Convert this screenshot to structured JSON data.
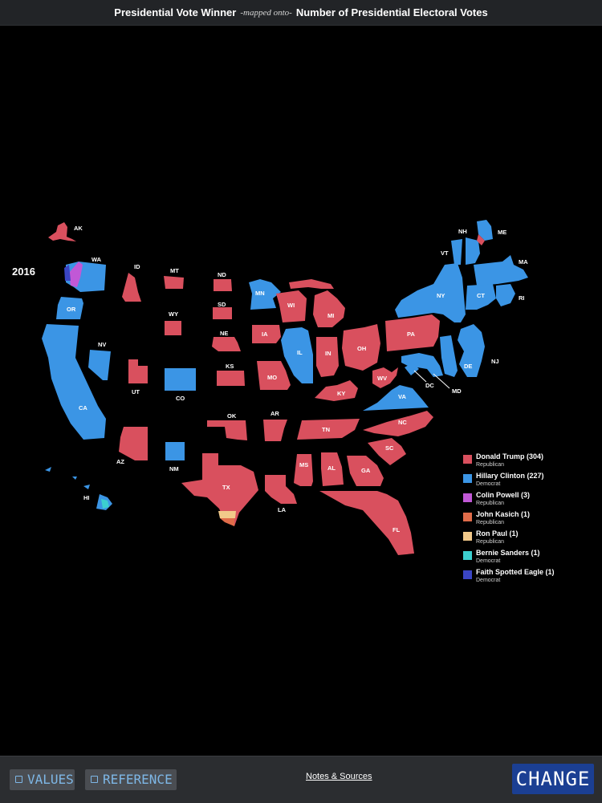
{
  "header": {
    "left": "Presidential Vote Winner",
    "mid": "-mapped onto-",
    "right": "Number of Presidential Electoral Votes"
  },
  "year": "2016",
  "colors": {
    "trump": "#d9505e",
    "clinton": "#3b95e5",
    "powell": "#c158d6",
    "kasich": "#e06c4a",
    "paul": "#f2c98a",
    "sanders": "#3ccfcf",
    "eagle": "#3a45c4"
  },
  "states": [
    {
      "abbr": "AK",
      "winner": "trump"
    },
    {
      "abbr": "WA",
      "winner": "clinton"
    },
    {
      "abbr": "OR",
      "winner": "clinton"
    },
    {
      "abbr": "CA",
      "winner": "clinton"
    },
    {
      "abbr": "NV",
      "winner": "clinton"
    },
    {
      "abbr": "ID",
      "winner": "trump"
    },
    {
      "abbr": "MT",
      "winner": "trump"
    },
    {
      "abbr": "WY",
      "winner": "trump"
    },
    {
      "abbr": "UT",
      "winner": "trump"
    },
    {
      "abbr": "CO",
      "winner": "clinton"
    },
    {
      "abbr": "AZ",
      "winner": "trump"
    },
    {
      "abbr": "NM",
      "winner": "clinton"
    },
    {
      "abbr": "ND",
      "winner": "trump"
    },
    {
      "abbr": "SD",
      "winner": "trump"
    },
    {
      "abbr": "NE",
      "winner": "trump"
    },
    {
      "abbr": "KS",
      "winner": "trump"
    },
    {
      "abbr": "OK",
      "winner": "trump"
    },
    {
      "abbr": "TX",
      "winner": "trump"
    },
    {
      "abbr": "MN",
      "winner": "clinton"
    },
    {
      "abbr": "IA",
      "winner": "trump"
    },
    {
      "abbr": "MO",
      "winner": "trump"
    },
    {
      "abbr": "AR",
      "winner": "trump"
    },
    {
      "abbr": "LA",
      "winner": "trump"
    },
    {
      "abbr": "WI",
      "winner": "trump"
    },
    {
      "abbr": "IL",
      "winner": "clinton"
    },
    {
      "abbr": "MI",
      "winner": "trump"
    },
    {
      "abbr": "IN",
      "winner": "trump"
    },
    {
      "abbr": "OH",
      "winner": "trump"
    },
    {
      "abbr": "KY",
      "winner": "trump"
    },
    {
      "abbr": "TN",
      "winner": "trump"
    },
    {
      "abbr": "MS",
      "winner": "trump"
    },
    {
      "abbr": "AL",
      "winner": "trump"
    },
    {
      "abbr": "GA",
      "winner": "trump"
    },
    {
      "abbr": "FL",
      "winner": "trump"
    },
    {
      "abbr": "SC",
      "winner": "trump"
    },
    {
      "abbr": "NC",
      "winner": "trump"
    },
    {
      "abbr": "VA",
      "winner": "clinton"
    },
    {
      "abbr": "WV",
      "winner": "trump"
    },
    {
      "abbr": "PA",
      "winner": "trump"
    },
    {
      "abbr": "NY",
      "winner": "clinton"
    },
    {
      "abbr": "VT",
      "winner": "clinton"
    },
    {
      "abbr": "NH",
      "winner": "clinton"
    },
    {
      "abbr": "ME",
      "winner": "clinton"
    },
    {
      "abbr": "MA",
      "winner": "clinton"
    },
    {
      "abbr": "RI",
      "winner": "clinton"
    },
    {
      "abbr": "CT",
      "winner": "clinton"
    },
    {
      "abbr": "NJ",
      "winner": "clinton"
    },
    {
      "abbr": "DE",
      "winner": "clinton"
    },
    {
      "abbr": "MD",
      "winner": "clinton"
    },
    {
      "abbr": "DC",
      "winner": "clinton"
    },
    {
      "abbr": "HI",
      "winner": "clinton"
    }
  ],
  "legend": [
    {
      "name": "Donald Trump (304)",
      "party": "Republican",
      "color_key": "trump"
    },
    {
      "name": "Hillary Clinton (227)",
      "party": "Democrat",
      "color_key": "clinton"
    },
    {
      "name": "Colin Powell (3)",
      "party": "Republican",
      "color_key": "powell"
    },
    {
      "name": "John Kasich (1)",
      "party": "Republican",
      "color_key": "kasich"
    },
    {
      "name": "Ron Paul (1)",
      "party": "Republican",
      "color_key": "paul"
    },
    {
      "name": "Bernie Sanders (1)",
      "party": "Democrat",
      "color_key": "sanders"
    },
    {
      "name": "Faith Spotted Eagle (1)",
      "party": "Democrat",
      "color_key": "eagle"
    }
  ],
  "footer": {
    "values_label": "VALUES",
    "reference_label": "REFERENCE",
    "notes_label": "Notes & Sources",
    "change_label": "CHANGE"
  }
}
